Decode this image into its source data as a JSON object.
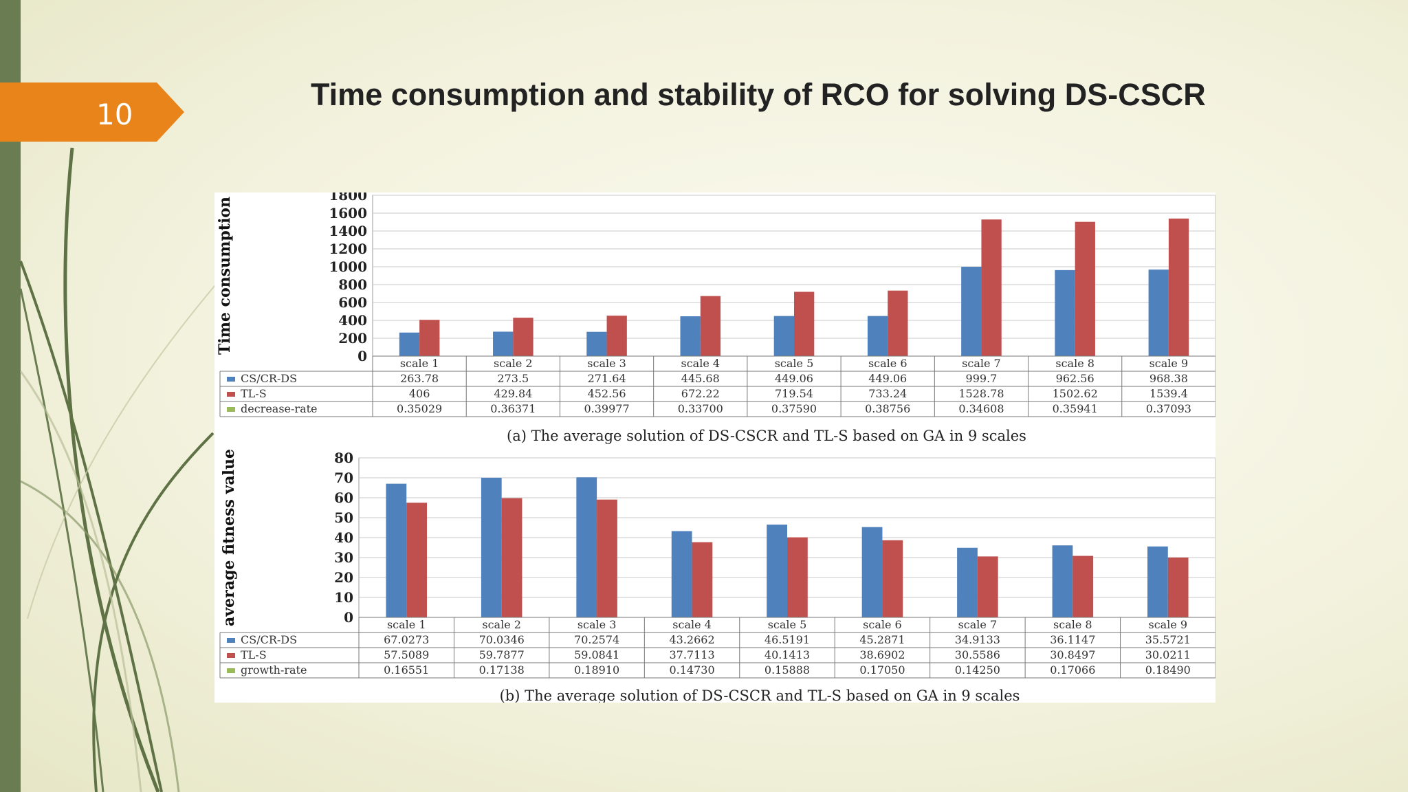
{
  "slide": {
    "number": "10",
    "title": "Time consumption and stability of RCO for solving DS-CSCR",
    "colors": {
      "accent": "#e8841a",
      "sidebar": "#6a7d52",
      "series1": "#4f81bd",
      "series2": "#c0504d",
      "series3": "#9bbb59"
    }
  },
  "chart_data": [
    {
      "type": "bar",
      "ylabel": "Time consumption",
      "ylim": [
        0,
        1800
      ],
      "yticks": [
        "0",
        "200",
        "400",
        "600",
        "800",
        "1000",
        "1200",
        "1400",
        "1600",
        "1800"
      ],
      "categories": [
        "scale 1",
        "scale 2",
        "scale 3",
        "scale 4",
        "scale 5",
        "scale 6",
        "scale 7",
        "scale 8",
        "scale 9"
      ],
      "series": [
        {
          "name": "CS/CR-DS",
          "values": [
            263.78,
            273.5,
            271.64,
            445.68,
            449.06,
            449.06,
            999.7,
            962.56,
            968.38
          ],
          "labels": [
            "263.78",
            "273.5",
            "271.64",
            "445.68",
            "449.06",
            "449.06",
            "999.7",
            "962.56",
            "968.38"
          ]
        },
        {
          "name": "TL-S",
          "values": [
            406,
            429.84,
            452.56,
            672.22,
            719.54,
            733.24,
            1528.78,
            1502.62,
            1539.4
          ],
          "labels": [
            "406",
            "429.84",
            "452.56",
            "672.22",
            "719.54",
            "733.24",
            "1528.78",
            "1502.62",
            "1539.4"
          ]
        },
        {
          "name": "decrease-rate",
          "values": [
            0.35029,
            0.36371,
            0.39977,
            0.337,
            0.3759,
            0.38756,
            0.34608,
            0.35941,
            0.37093
          ],
          "labels": [
            "0.35029",
            "0.36371",
            "0.39977",
            "0.33700",
            "0.37590",
            "0.38756",
            "0.34608",
            "0.35941",
            "0.37093"
          ]
        }
      ],
      "caption": "(a) The average solution of DS-CSCR and TL-S based on GA in 9 scales",
      "grid": true
    },
    {
      "type": "bar",
      "ylabel": "average fitness value",
      "ylim": [
        0,
        80
      ],
      "yticks": [
        "0",
        "10",
        "20",
        "30",
        "40",
        "50",
        "60",
        "70",
        "80"
      ],
      "categories": [
        "scale 1",
        "scale 2",
        "scale 3",
        "scale 4",
        "scale 5",
        "scale 6",
        "scale 7",
        "scale 8",
        "scale 9"
      ],
      "series": [
        {
          "name": "CS/CR-DS",
          "values": [
            67.0273,
            70.0346,
            70.2574,
            43.2662,
            46.5191,
            45.2871,
            34.9133,
            36.1147,
            35.5721
          ],
          "labels": [
            "67.0273",
            "70.0346",
            "70.2574",
            "43.2662",
            "46.5191",
            "45.2871",
            "34.9133",
            "36.1147",
            "35.5721"
          ]
        },
        {
          "name": "TL-S",
          "values": [
            57.5089,
            59.7877,
            59.0841,
            37.7113,
            40.1413,
            38.6902,
            30.5586,
            30.8497,
            30.0211
          ],
          "labels": [
            "57.5089",
            "59.7877",
            "59.0841",
            "37.7113",
            "40.1413",
            "38.6902",
            "30.5586",
            "30.8497",
            "30.0211"
          ]
        },
        {
          "name": "growth-rate",
          "values": [
            0.16551,
            0.17138,
            0.1891,
            0.1473,
            0.15888,
            0.1705,
            0.1425,
            0.17066,
            0.1849
          ],
          "labels": [
            "0.16551",
            "0.17138",
            "0.18910",
            "0.14730",
            "0.15888",
            "0.17050",
            "0.14250",
            "0.17066",
            "0.18490"
          ]
        }
      ],
      "caption": "(b) The average solution of DS-CSCR and TL-S based on GA in 9 scales",
      "grid": true
    }
  ]
}
